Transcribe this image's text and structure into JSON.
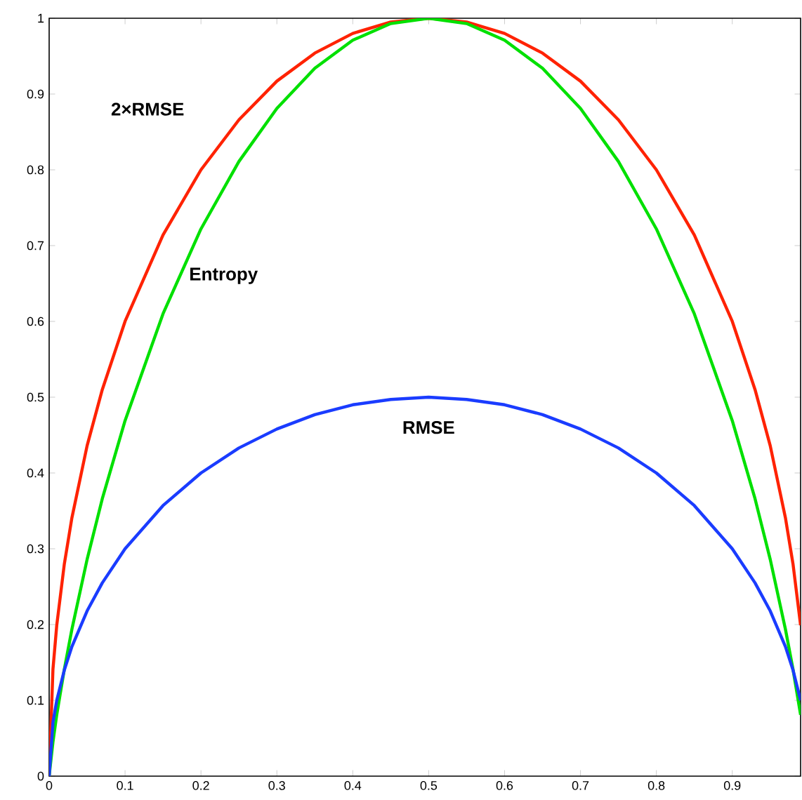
{
  "chart_data": {
    "type": "line",
    "x": [
      0,
      0.005,
      0.01,
      0.02,
      0.03,
      0.05,
      0.07,
      0.1,
      0.15,
      0.2,
      0.25,
      0.3,
      0.35,
      0.4,
      0.45,
      0.5,
      0.55,
      0.6,
      0.65,
      0.7,
      0.75,
      0.8,
      0.85,
      0.9,
      0.93,
      0.95,
      0.97,
      0.98,
      0.99
    ],
    "series": [
      {
        "color": "#ff2200",
        "values": [
          0,
          0.141,
          0.199,
          0.28,
          0.341,
          0.436,
          0.51,
          0.6,
          0.714,
          0.8,
          0.866,
          0.917,
          0.954,
          0.98,
          0.995,
          1,
          0.995,
          0.98,
          0.954,
          0.917,
          0.866,
          0.8,
          0.714,
          0.6,
          0.51,
          0.436,
          0.341,
          0.28,
          0.199
        ]
      },
      {
        "color": "#00e000",
        "values": [
          0,
          0.045,
          0.081,
          0.141,
          0.194,
          0.286,
          0.366,
          0.469,
          0.61,
          0.722,
          0.811,
          0.881,
          0.934,
          0.971,
          0.993,
          1,
          0.993,
          0.971,
          0.934,
          0.881,
          0.811,
          0.722,
          0.61,
          0.469,
          0.366,
          0.286,
          0.194,
          0.141,
          0.081
        ]
      },
      {
        "color": "#1a3cff",
        "values": [
          0,
          0.071,
          0.1,
          0.14,
          0.171,
          0.218,
          0.255,
          0.3,
          0.357,
          0.4,
          0.433,
          0.458,
          0.477,
          0.49,
          0.497,
          0.5,
          0.497,
          0.49,
          0.477,
          0.458,
          0.433,
          0.4,
          0.357,
          0.3,
          0.255,
          0.218,
          0.171,
          0.14,
          0.1
        ]
      }
    ],
    "annotations": [
      "2×RMSE",
      "Entropy",
      "RMSE"
    ],
    "xlim": [
      0,
      0.99
    ],
    "ylim": [
      0,
      1
    ],
    "xticks": [
      0,
      0.1,
      0.2,
      0.3,
      0.4,
      0.5,
      0.6,
      0.7,
      0.8,
      0.9
    ],
    "yticks": [
      0,
      0.1,
      0.2,
      0.3,
      0.4,
      0.5,
      0.6,
      0.7,
      0.8,
      0.9,
      1
    ],
    "line_style": "solid",
    "marker": "none",
    "grid": false
  }
}
